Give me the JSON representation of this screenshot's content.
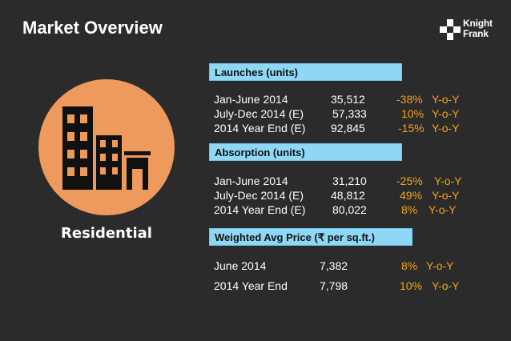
{
  "title": "Market Overview",
  "logo": {
    "line1": "Knight",
    "line2": "Frank",
    "icon": "knight-frank-logo-icon"
  },
  "segment": {
    "label": "Residential",
    "icon": "buildings-icon",
    "circle_color": "#ee9a5c"
  },
  "colors": {
    "background": "#2b2b2b",
    "header_bg": "#8fd8f5",
    "accent": "#f5a31a",
    "text": "#ffffff"
  },
  "launches": {
    "heading": "Launches (units)",
    "rows": [
      {
        "label": "Jan-June 2014",
        "value": "35,512",
        "change": "-38%",
        "yoy": "Y-o-Y"
      },
      {
        "label": "July-Dec 2014 (E)",
        "value": "57,333",
        "change": "10%",
        "yoy": "Y-o-Y"
      },
      {
        "label": "2014 Year End (E)",
        "value": "92,845",
        "change": "-15%",
        "yoy": "Y-o-Y"
      }
    ]
  },
  "absorption": {
    "heading": "Absorption (units)",
    "rows": [
      {
        "label": "Jan-June 2014",
        "value": "31,210",
        "change": "-25%",
        "yoy": "Y-o-Y"
      },
      {
        "label": "July-Dec 2014 (E)",
        "value": "48,812",
        "change": "49%",
        "yoy": "Y-o-Y"
      },
      {
        "label": "2014 Year End (E)",
        "value": "80,022",
        "change": "8%",
        "yoy": "Y-o-Y"
      }
    ]
  },
  "price": {
    "heading_prefix": "Weighted Avg Price (",
    "heading_symbol": "₹",
    "heading_suffix": " per sq.ft.)",
    "rows": [
      {
        "label": "June 2014",
        "value": "7,382",
        "change": "8%",
        "yoy": "Y-o-Y"
      },
      {
        "label": "2014 Year End",
        "value": "7,798",
        "change": "10%",
        "yoy": "Y-o-Y"
      }
    ]
  }
}
